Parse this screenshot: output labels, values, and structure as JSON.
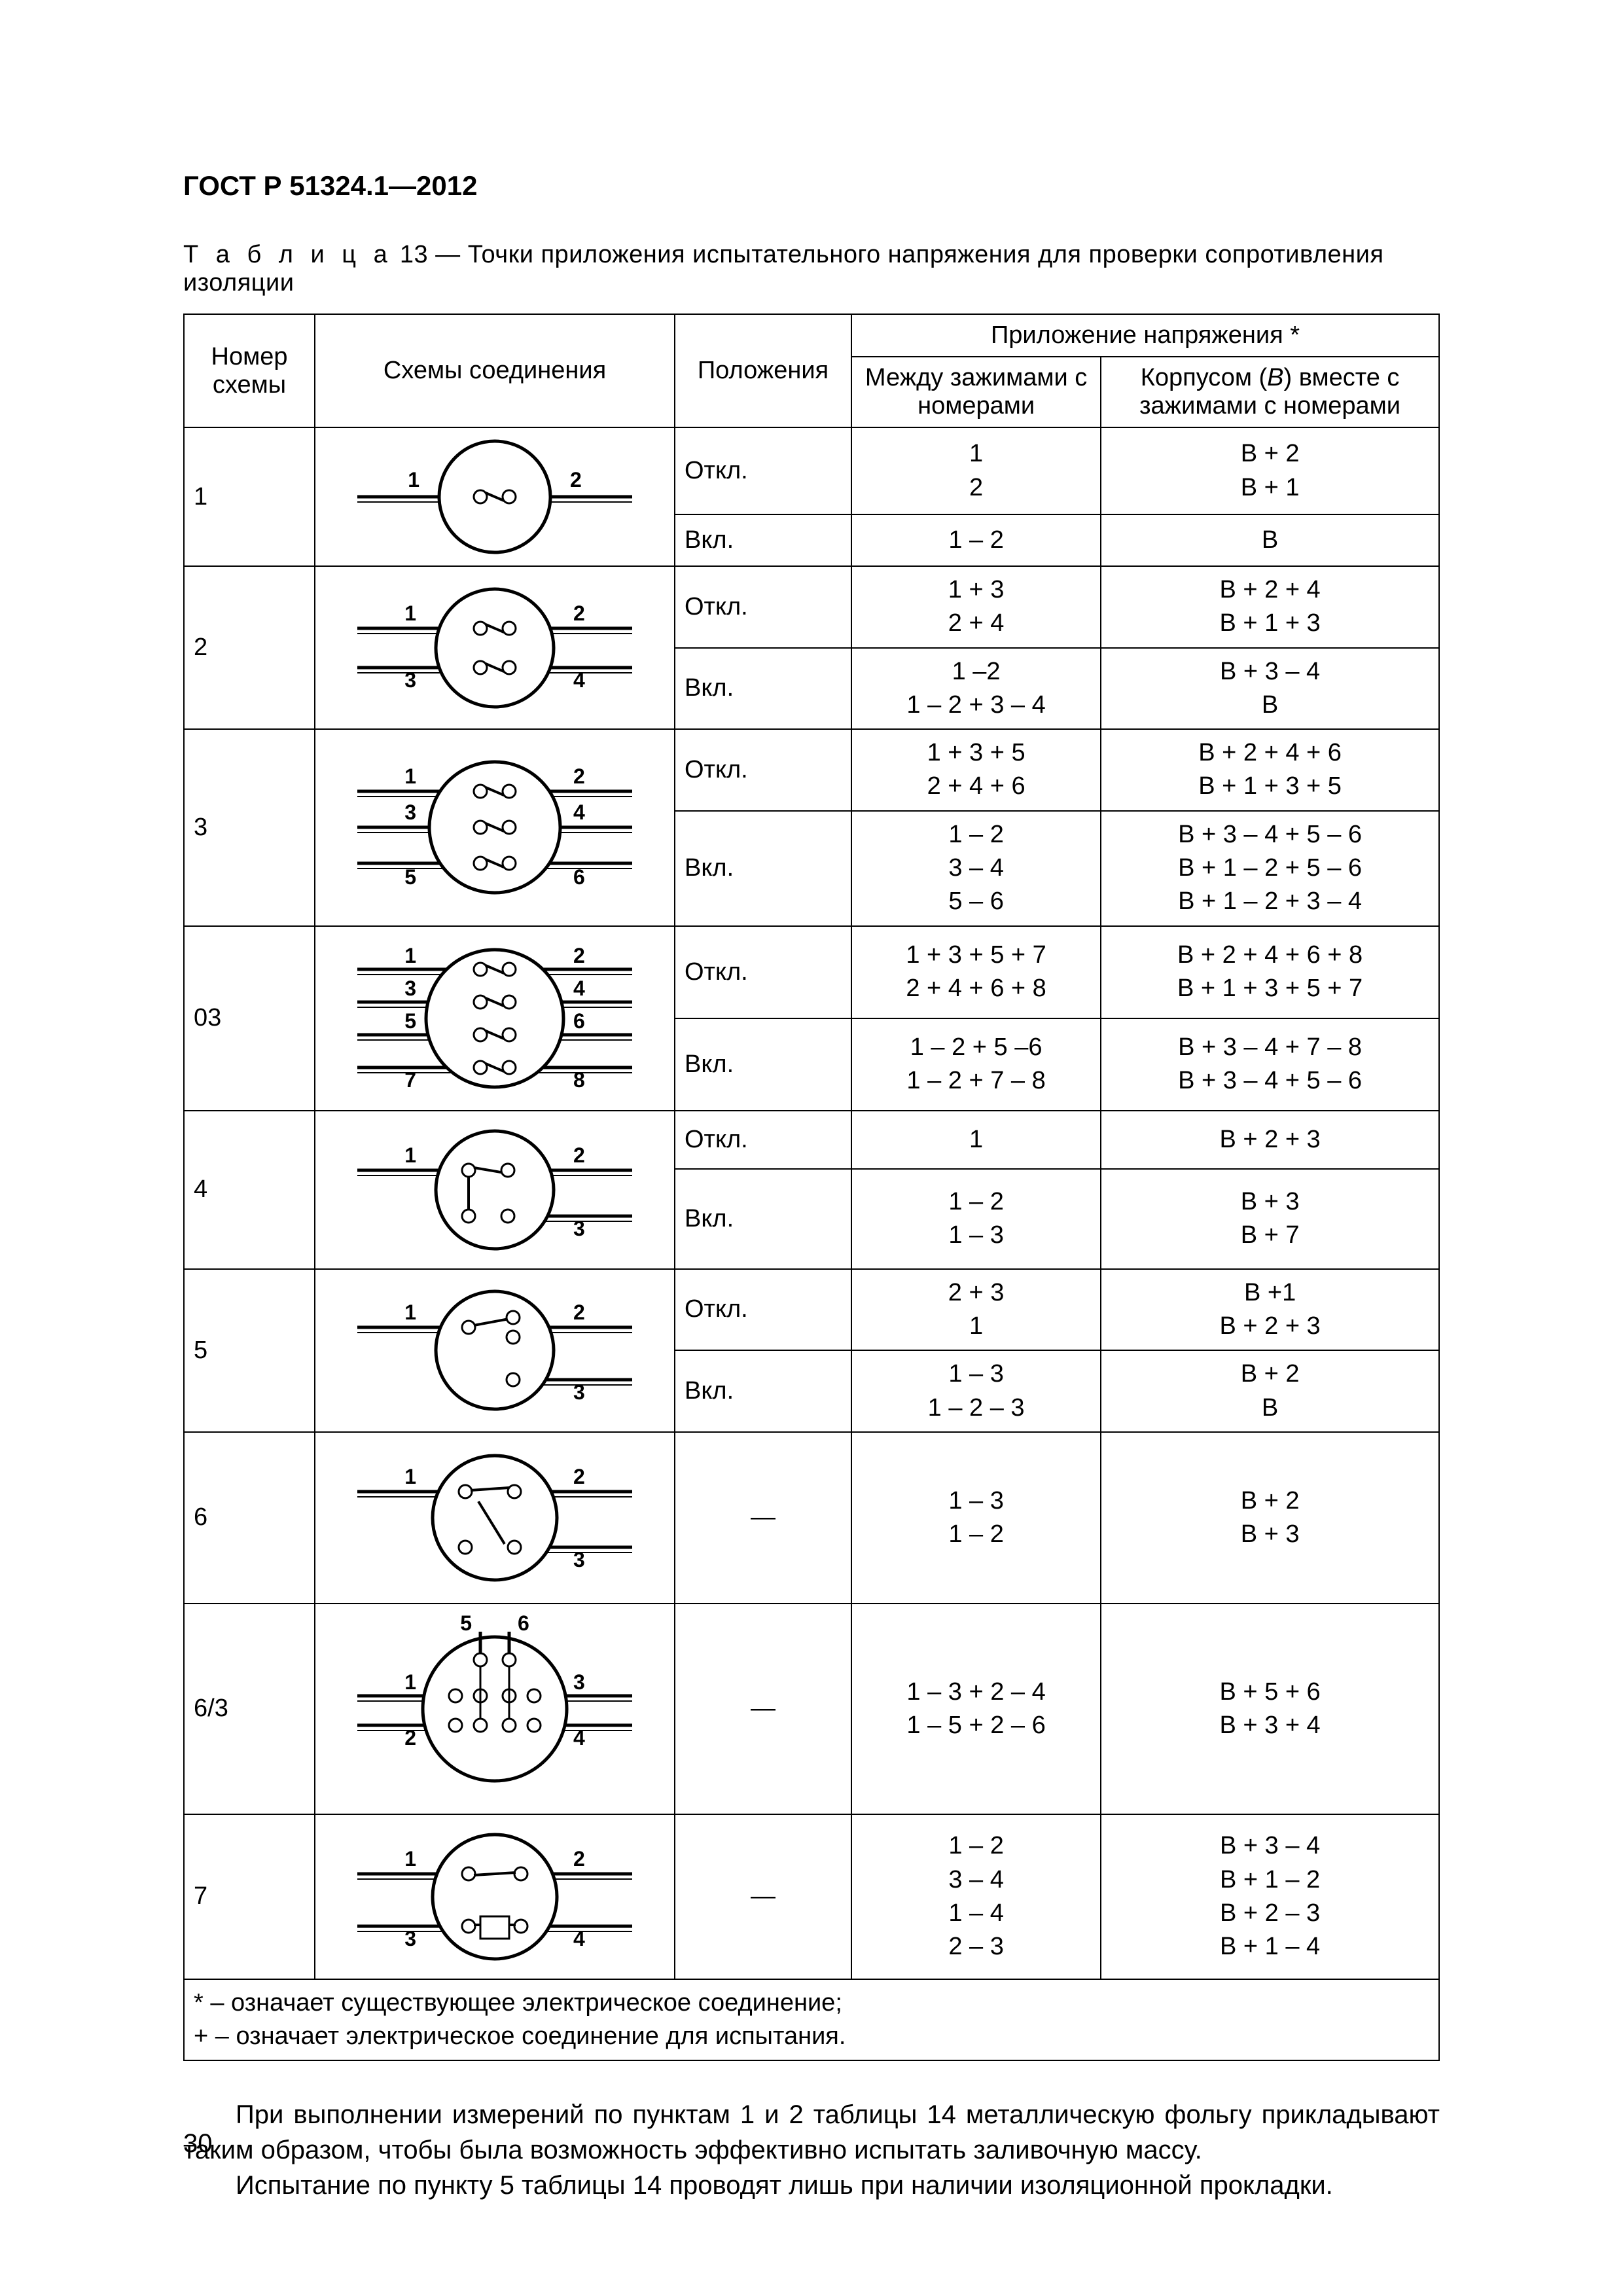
{
  "header": {
    "doc_id": "ГОСТ Р 51324.1—2012"
  },
  "caption": {
    "label_spaced": "Т а б л и ц а",
    "number": "13",
    "dash": "—",
    "title": "Точки приложения испытательного напряжения для проверки сопротивления изоляции"
  },
  "columns": {
    "scheme_no": "Номер схемы",
    "diagram": "Схемы соединения",
    "position": "Положения",
    "voltage_header": "Приложение напряжения *",
    "between_clamps": "Между зажимами с номерами",
    "body_with_b": "Корпусом (",
    "body_with_italic": "В",
    "body_with_after": ") вместе с зажимами с номерами"
  },
  "pos": {
    "off": "Откл.",
    "on": "Вкл.",
    "dash": "—"
  },
  "rows": [
    {
      "id": "1",
      "subrows": [
        {
          "pos": "off",
          "m": [
            "1",
            "2"
          ],
          "b": [
            "В + 2",
            "В + 1"
          ]
        },
        {
          "pos": "on",
          "m": [
            "1 – 2"
          ],
          "b": [
            "В"
          ]
        }
      ]
    },
    {
      "id": "2",
      "subrows": [
        {
          "pos": "off",
          "m": [
            "1 + 3",
            "2 + 4"
          ],
          "b": [
            "В + 2 + 4",
            "В + 1 + 3"
          ]
        },
        {
          "pos": "on",
          "m": [
            "1 –2",
            "1 – 2 + 3 – 4"
          ],
          "b": [
            "В + 3 – 4",
            "В"
          ]
        }
      ]
    },
    {
      "id": "3",
      "subrows": [
        {
          "pos": "off",
          "m": [
            "1 + 3 + 5",
            "2 + 4 + 6"
          ],
          "b": [
            "В + 2 + 4 + 6",
            "В + 1 + 3 + 5"
          ]
        },
        {
          "pos": "on",
          "m": [
            "1 – 2",
            "3 – 4",
            "5 – 6"
          ],
          "b": [
            "В + 3 – 4 + 5 – 6",
            "В + 1 – 2 + 5 – 6",
            "В + 1 – 2 + 3 – 4"
          ]
        }
      ]
    },
    {
      "id": "03",
      "subrows": [
        {
          "pos": "off",
          "m": [
            "1 + 3 + 5 + 7",
            "2 + 4 + 6 + 8"
          ],
          "b": [
            "В + 2 + 4 + 6 + 8",
            "В + 1 + 3 + 5 + 7"
          ]
        },
        {
          "pos": "on",
          "m": [
            "1 – 2 + 5 –6",
            "1 – 2 + 7 – 8"
          ],
          "b": [
            "В + 3 – 4 + 7 – 8",
            "В + 3 – 4 + 5 – 6"
          ]
        }
      ]
    },
    {
      "id": "4",
      "subrows": [
        {
          "pos": "off",
          "m": [
            "1"
          ],
          "b": [
            "В + 2 + 3"
          ]
        },
        {
          "pos": "on",
          "m": [
            "1 – 2",
            "1 – 3"
          ],
          "b": [
            "В + 3",
            "В + 7"
          ]
        }
      ]
    },
    {
      "id": "5",
      "subrows": [
        {
          "pos": "off",
          "m": [
            "2 + 3",
            "1"
          ],
          "b": [
            "В +1",
            "В + 2 + 3"
          ]
        },
        {
          "pos": "on",
          "m": [
            "1 – 3",
            "1 – 2 – 3"
          ],
          "b": [
            "В + 2",
            "В"
          ]
        }
      ]
    },
    {
      "id": "6",
      "subrows": [
        {
          "pos": "dash",
          "m": [
            "1 – 3",
            "1 – 2"
          ],
          "b": [
            "В + 2",
            "В + 3"
          ]
        }
      ]
    },
    {
      "id": "6/3",
      "subrows": [
        {
          "pos": "dash",
          "m": [
            "1 – 3 + 2 – 4",
            "1 – 5 + 2 – 6"
          ],
          "b": [
            "В + 5 + 6",
            "В + 3 + 4"
          ]
        }
      ]
    },
    {
      "id": "7",
      "subrows": [
        {
          "pos": "dash",
          "m": [
            "1 – 2",
            "3 – 4",
            "1 – 4",
            "2 – 3"
          ],
          "b": [
            "В + 3 – 4",
            "В + 1 – 2",
            "В + 2 – 3",
            "В + 1 – 4"
          ]
        }
      ]
    }
  ],
  "footnote": {
    "line1": "* –  означает существующее электрическое соединение;",
    "line2": "+ – означает электрическое соединение для испытания."
  },
  "body": {
    "p1": "При выполнении измерений по пунктам 1 и 2 таблицы 14 металлическую фольгу прикладывают таким образом, чтобы была возможность эффективно испытать заливочную массу.",
    "p2": "Испытание по пункту 5 таблицы 14 проводят лишь при наличии изоляционной прокладки."
  },
  "page_number": "30"
}
